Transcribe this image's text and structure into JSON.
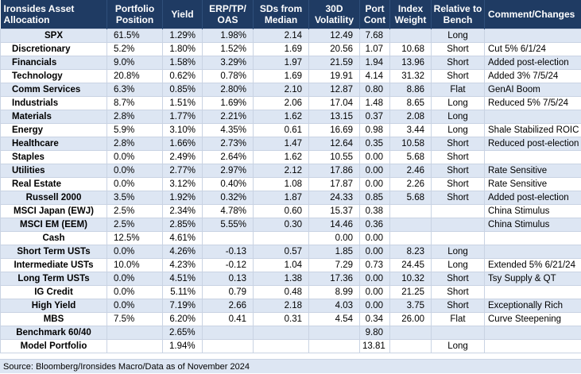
{
  "table": {
    "headers": [
      "Ironsides Asset Allocation",
      "Portfolio Position",
      "Yield",
      "ERP/TP/ OAS",
      "SDs from Median",
      "30D Volatility",
      "Port Cont",
      "Index Weight",
      "Relative to Bench",
      "Comment/Changes"
    ],
    "rows": [
      [
        "SPX",
        "61.5%",
        "1.29%",
        "1.98%",
        "2.14",
        "12.49",
        "7.68",
        "",
        "Long",
        ""
      ],
      [
        "Discretionary",
        "5.2%",
        "1.80%",
        "1.52%",
        "1.69",
        "20.56",
        "1.07",
        "10.68",
        "Short",
        "Cut 5% 6/1/24"
      ],
      [
        "Financials",
        "9.0%",
        "1.58%",
        "3.29%",
        "1.97",
        "21.59",
        "1.94",
        "13.96",
        "Short",
        "Added post-election"
      ],
      [
        "Technology",
        "20.8%",
        "0.62%",
        "0.78%",
        "1.69",
        "19.91",
        "4.14",
        "31.32",
        "Short",
        "Added 3% 7/5/24"
      ],
      [
        "Comm Services",
        "6.3%",
        "0.85%",
        "2.80%",
        "2.10",
        "12.87",
        "0.80",
        "8.86",
        "Flat",
        "GenAI Boom"
      ],
      [
        "Industrials",
        "8.7%",
        "1.51%",
        "1.69%",
        "2.06",
        "17.04",
        "1.48",
        "8.65",
        "Long",
        "Reduced 5% 7/5/24"
      ],
      [
        "Materials",
        "2.8%",
        "1.77%",
        "2.21%",
        "1.62",
        "13.15",
        "0.37",
        "2.08",
        "Long",
        ""
      ],
      [
        "Energy",
        "5.9%",
        "3.10%",
        "4.35%",
        "0.61",
        "16.69",
        "0.98",
        "3.44",
        "Long",
        "Shale Stabilized ROIC"
      ],
      [
        "Healthcare",
        "2.8%",
        "1.66%",
        "2.73%",
        "1.47",
        "12.64",
        "0.35",
        "10.58",
        "Short",
        "Reduced post-election"
      ],
      [
        "Staples",
        "0.0%",
        "2.49%",
        "2.64%",
        "1.62",
        "10.55",
        "0.00",
        "5.68",
        "Short",
        ""
      ],
      [
        "Utilities",
        "0.0%",
        "2.77%",
        "2.97%",
        "2.12",
        "17.86",
        "0.00",
        "2.46",
        "Short",
        "Rate Sensitive"
      ],
      [
        "Real Estate",
        "0.0%",
        "3.12%",
        "0.40%",
        "1.08",
        "17.87",
        "0.00",
        "2.26",
        "Short",
        "Rate Sensitive"
      ],
      [
        "Russell 2000",
        "3.5%",
        "1.92%",
        "0.32%",
        "1.87",
        "24.33",
        "0.85",
        "5.68",
        "Short",
        "Added post-election"
      ],
      [
        "MSCI Japan (EWJ)",
        "2.5%",
        "2.34%",
        "4.78%",
        "0.60",
        "15.37",
        "0.38",
        "",
        "",
        "China Stimulus"
      ],
      [
        "MSCI EM (EEM)",
        "2.5%",
        "2.85%",
        "5.55%",
        "0.30",
        "14.46",
        "0.36",
        "",
        "",
        "China Stimulus"
      ],
      [
        "Cash",
        "12.5%",
        "4.61%",
        "",
        "",
        "0.00",
        "0.00",
        "",
        "",
        ""
      ],
      [
        "Short Term USTs",
        "0.0%",
        "4.26%",
        "-0.13",
        "0.57",
        "1.85",
        "0.00",
        "8.23",
        "Long",
        ""
      ],
      [
        "Intermediate USTs",
        "10.0%",
        "4.23%",
        "-0.12",
        "1.04",
        "7.29",
        "0.73",
        "24.45",
        "Long",
        "Extended 5% 6/21/24"
      ],
      [
        "Long Term USTs",
        "0.0%",
        "4.51%",
        "0.13",
        "1.38",
        "17.36",
        "0.00",
        "10.32",
        "Short",
        "Tsy Supply & QT"
      ],
      [
        "IG Credit",
        "0.0%",
        "5.11%",
        "0.79",
        "0.48",
        "8.99",
        "0.00",
        "21.25",
        "Short",
        ""
      ],
      [
        "High Yield",
        "0.0%",
        "7.19%",
        "2.66",
        "2.18",
        "4.03",
        "0.00",
        "3.75",
        "Short",
        "Exceptionally Rich"
      ],
      [
        "MBS",
        "7.5%",
        "6.20%",
        "0.41",
        "0.31",
        "4.54",
        "0.34",
        "26.00",
        "Flat",
        "Curve Steepening"
      ],
      [
        "Benchmark 60/40",
        "",
        "2.65%",
        "",
        "",
        "",
        "9.80",
        "",
        "",
        ""
      ],
      [
        "Model Portfolio",
        "",
        "1.94%",
        "",
        "",
        "",
        "13.81",
        "",
        "Long",
        ""
      ]
    ]
  },
  "source": "Source: Bloomberg/Ironsides Macro/Data as of November 2024",
  "colors": {
    "header_bg": "#1f3b63",
    "band_bg": "#dde6f3"
  }
}
